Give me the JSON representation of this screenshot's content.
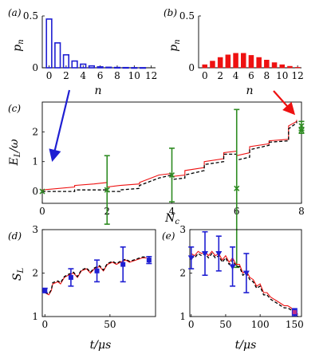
{
  "colors": {
    "blue": "#1f1fd2",
    "red": "#ee1111",
    "green": "#2e8b22",
    "black": "#000000",
    "magenta": "#c0308a"
  },
  "chart_data": [
    {
      "id": "a",
      "type": "bar",
      "panel_label": "(a)",
      "xlabel": "n",
      "ylabel": "p_n",
      "xlim": [
        -0.8,
        12.5
      ],
      "ylim": [
        0,
        0.5
      ],
      "x_ticks": [
        0,
        2,
        4,
        6,
        8,
        10,
        12
      ],
      "y_ticks": [
        0,
        0.5
      ],
      "y_tick_labels": [
        "0",
        "0.5"
      ],
      "bar_style": "hollow",
      "categories": [
        0,
        1,
        2,
        3,
        4,
        5,
        6,
        7,
        8,
        9,
        10,
        11,
        12
      ],
      "values": [
        0.47,
        0.24,
        0.125,
        0.065,
        0.035,
        0.018,
        0.009,
        0.005,
        0.003,
        0.002,
        0.001,
        0.001,
        0.0
      ]
    },
    {
      "id": "b",
      "type": "bar",
      "panel_label": "(b)",
      "xlabel": "n",
      "ylabel": "p_n",
      "xlim": [
        -0.8,
        12.5
      ],
      "ylim": [
        0,
        0.5
      ],
      "x_ticks": [
        0,
        2,
        4,
        6,
        8,
        10,
        12
      ],
      "y_ticks": [
        0,
        0.5
      ],
      "y_tick_labels": [
        "0",
        "0.5"
      ],
      "bar_style": "filled",
      "categories": [
        0,
        1,
        2,
        3,
        4,
        5,
        6,
        7,
        8,
        9,
        10,
        11,
        12
      ],
      "values": [
        0.03,
        0.065,
        0.1,
        0.125,
        0.14,
        0.14,
        0.12,
        0.1,
        0.075,
        0.05,
        0.03,
        0.015,
        0.005
      ]
    },
    {
      "id": "c",
      "type": "line",
      "panel_label": "(c)",
      "xlabel": "N_c",
      "ylabel": "E_L/ω",
      "xlim": [
        0,
        8
      ],
      "ylim": [
        -0.4,
        3.0
      ],
      "x_ticks": [
        0,
        2,
        4,
        6,
        8
      ],
      "y_ticks": [
        0,
        1,
        2
      ],
      "series": [
        {
          "style": "red-solid",
          "x": [
            0,
            1,
            1,
            1.6,
            1.6,
            2,
            2,
            2.4,
            2.4,
            3,
            3,
            3.6,
            3.6,
            4,
            4,
            4.4,
            4.4,
            5,
            5,
            5.6,
            5.6,
            6,
            6,
            6.4,
            6.4,
            7,
            7,
            7.6,
            7.6,
            7.85,
            7.85
          ],
          "y": [
            0.05,
            0.15,
            0.2,
            0.25,
            0.25,
            0.3,
            0.15,
            0.2,
            0.2,
            0.25,
            0.3,
            0.55,
            0.55,
            0.6,
            0.5,
            0.55,
            0.7,
            0.8,
            1.0,
            1.1,
            1.3,
            1.35,
            1.2,
            1.3,
            1.5,
            1.6,
            1.7,
            1.75,
            2.2,
            2.35,
            2.4
          ]
        },
        {
          "style": "black-dashed",
          "x": [
            0,
            1,
            1,
            1.6,
            1.6,
            2,
            2,
            2.4,
            2.4,
            3,
            3,
            3.6,
            3.6,
            4,
            4,
            4.4,
            4.4,
            5,
            5,
            5.6,
            5.6,
            6,
            6,
            6.4,
            6.4,
            7,
            7,
            7.6,
            7.6,
            7.85,
            7.85
          ],
          "y": [
            0,
            0,
            0.05,
            0.05,
            0.05,
            0.05,
            0,
            0,
            0.05,
            0.1,
            0.2,
            0.45,
            0.45,
            0.55,
            0.4,
            0.45,
            0.55,
            0.7,
            0.9,
            1.0,
            1.25,
            1.25,
            1.05,
            1.15,
            1.4,
            1.55,
            1.65,
            1.7,
            2.1,
            2.3,
            2.35
          ]
        }
      ],
      "error_points": [
        {
          "x": 0,
          "y": 0,
          "err": 0
        },
        {
          "x": 2,
          "y": 0.05,
          "err": 1.15
        },
        {
          "x": 4,
          "y": 0.55,
          "err": 0.9
        },
        {
          "x": 6,
          "y": 0.1,
          "err": 2.65
        },
        {
          "x": 8,
          "y": 2.2,
          "err": 0.15
        },
        {
          "x": 8,
          "y": 2.05,
          "err": 0.1
        }
      ]
    },
    {
      "id": "d",
      "type": "line",
      "panel_label": "(d)",
      "xlabel": "t/μs",
      "ylabel": "S_L",
      "xlim": [
        -2,
        85
      ],
      "ylim": [
        1,
        3
      ],
      "x_ticks": [
        0,
        50
      ],
      "y_ticks": [
        1,
        2,
        3
      ],
      "series": [
        {
          "style": "red-solid",
          "x": [
            0,
            3,
            5,
            6,
            10,
            12,
            15,
            18,
            22,
            25,
            28,
            32,
            35,
            38,
            42,
            45,
            48,
            52,
            55,
            58,
            62,
            65,
            70,
            75,
            78
          ],
          "y": [
            1.55,
            1.5,
            1.6,
            1.75,
            1.8,
            1.75,
            1.9,
            1.95,
            2.0,
            1.9,
            2.05,
            2.1,
            2.0,
            2.1,
            2.15,
            2.05,
            2.2,
            2.25,
            2.2,
            2.25,
            2.3,
            2.25,
            2.3,
            2.35,
            2.35
          ]
        },
        {
          "style": "black-dashed",
          "x": [
            0,
            3,
            5,
            6,
            10,
            12,
            15,
            18,
            22,
            25,
            28,
            32,
            35,
            38,
            42,
            45,
            48,
            52,
            55,
            58,
            62,
            65,
            70,
            75,
            78
          ],
          "y": [
            1.55,
            1.52,
            1.62,
            1.78,
            1.82,
            1.78,
            1.92,
            1.97,
            2.02,
            1.92,
            2.07,
            2.12,
            2.02,
            2.12,
            2.17,
            2.07,
            2.22,
            2.27,
            2.22,
            2.27,
            2.32,
            2.27,
            2.32,
            2.37,
            2.37
          ]
        }
      ],
      "error_points": [
        {
          "x": 0,
          "y": 1.6,
          "err": 0.05
        },
        {
          "x": 20,
          "y": 1.9,
          "err": 0.2
        },
        {
          "x": 40,
          "y": 2.05,
          "err": 0.25
        },
        {
          "x": 60,
          "y": 2.2,
          "err": 0.4
        },
        {
          "x": 80,
          "y": 2.3,
          "err": 0.08
        }
      ]
    },
    {
      "id": "e",
      "type": "line",
      "panel_label": "(e)",
      "xlabel": "t/μs",
      "ylabel": "",
      "xlim": [
        -2,
        160
      ],
      "ylim": [
        1,
        3
      ],
      "x_ticks": [
        0,
        50,
        100,
        150
      ],
      "y_ticks": [
        1,
        2,
        3
      ],
      "series": [
        {
          "style": "red-solid",
          "x": [
            0,
            5,
            10,
            15,
            20,
            25,
            30,
            35,
            40,
            45,
            50,
            55,
            60,
            65,
            70,
            75,
            80,
            85,
            90,
            95,
            100,
            105,
            110,
            115,
            120,
            125,
            130,
            135,
            140,
            145,
            150,
            155
          ],
          "y": [
            2.45,
            2.4,
            2.5,
            2.45,
            2.5,
            2.4,
            2.5,
            2.4,
            2.45,
            2.3,
            2.4,
            2.25,
            2.35,
            2.2,
            2.2,
            2.0,
            2.05,
            1.9,
            1.85,
            1.7,
            1.75,
            1.55,
            1.55,
            1.45,
            1.4,
            1.35,
            1.3,
            1.25,
            1.25,
            1.2,
            1.1,
            1.05
          ]
        },
        {
          "style": "black-dashed",
          "x": [
            0,
            5,
            10,
            15,
            20,
            25,
            30,
            35,
            40,
            45,
            50,
            55,
            60,
            65,
            70,
            75,
            80,
            85,
            90,
            95,
            100,
            105,
            110,
            115,
            120,
            125,
            130,
            135,
            140,
            145,
            150,
            155
          ],
          "y": [
            2.4,
            2.35,
            2.45,
            2.4,
            2.45,
            2.35,
            2.45,
            2.35,
            2.4,
            2.25,
            2.35,
            2.2,
            2.3,
            2.15,
            2.15,
            1.95,
            2.0,
            1.85,
            1.8,
            1.65,
            1.7,
            1.5,
            1.5,
            1.4,
            1.35,
            1.3,
            1.25,
            1.2,
            1.2,
            1.15,
            1.05,
            1.0
          ]
        }
      ],
      "error_points": [
        {
          "x": 0,
          "y": 2.35,
          "err": 0.25
        },
        {
          "x": 20,
          "y": 2.45,
          "err": 0.5
        },
        {
          "x": 40,
          "y": 2.45,
          "err": 0.4
        },
        {
          "x": 60,
          "y": 2.15,
          "err": 0.45
        },
        {
          "x": 80,
          "y": 2.0,
          "err": 0.45
        },
        {
          "x": 150,
          "y": 1.1,
          "err": 0.08
        }
      ]
    }
  ]
}
